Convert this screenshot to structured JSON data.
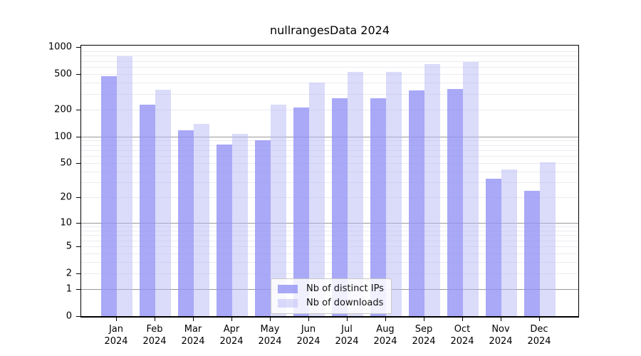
{
  "chart_data": {
    "type": "bar",
    "title": "nullrangesData 2024",
    "year_label": "2024",
    "categories": [
      "Jan",
      "Feb",
      "Mar",
      "Apr",
      "May",
      "Jun",
      "Jul",
      "Aug",
      "Sep",
      "Oct",
      "Nov",
      "Dec"
    ],
    "series": [
      {
        "name": "Nb of distinct IPs",
        "color": "#a9a9f7",
        "fill": "rgba(148,148,245,0.8)",
        "values": [
          475,
          225,
          118,
          81,
          90,
          209,
          270,
          266,
          326,
          341,
          33,
          24
        ]
      },
      {
        "name": "Nb of downloads",
        "color": "#dbdbfa",
        "fill": "rgba(183,183,245,0.5)",
        "values": [
          790,
          335,
          139,
          107,
          228,
          398,
          530,
          523,
          640,
          686,
          42,
          51
        ]
      }
    ],
    "y_axis": {
      "scale": "log1p",
      "ylim": [
        0,
        1000
      ],
      "ticks": [
        0,
        1,
        2,
        5,
        10,
        20,
        50,
        100,
        200,
        500,
        1000
      ]
    },
    "grid": {
      "major_lines": [
        1,
        10,
        100
      ],
      "major_color": "#999999",
      "minor_color": "#ebebf2"
    },
    "legend": {
      "position": "inside-bottom-center"
    }
  }
}
